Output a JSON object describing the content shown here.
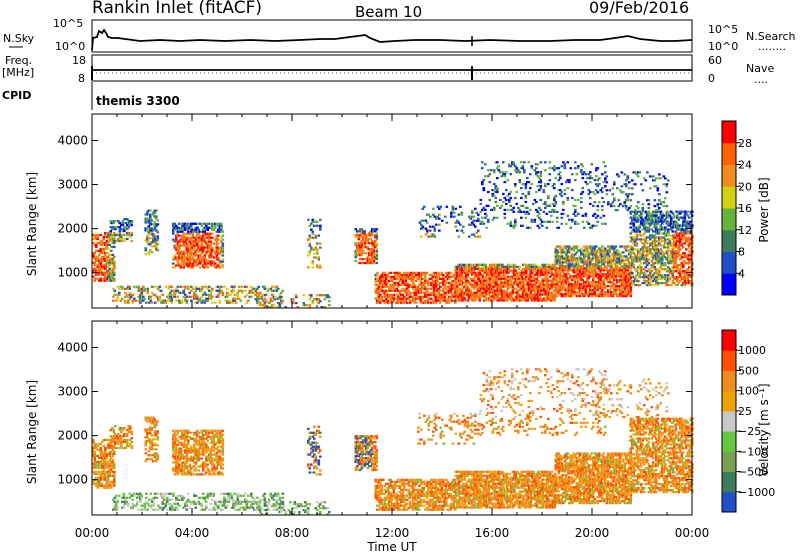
{
  "header": {
    "station": "Rankin Inlet (fitACF)",
    "beam": "Beam 10",
    "date": "09/Feb/2016"
  },
  "sky_panel": {
    "left_label": "N.Sky",
    "right_label": "N.Search",
    "right_legend": "........",
    "tick_top": "10^5",
    "tick_bottom": "10^0"
  },
  "freq_panel": {
    "left_label_1": "Freq.",
    "left_label_2": "[MHz]",
    "left_tick_top": "18",
    "left_tick_bottom": "8",
    "right_label": "Nave",
    "right_legend": "....",
    "right_tick_top": "60",
    "right_tick_bottom": "0"
  },
  "cpid_panel": {
    "label": "CPID",
    "value": "themis 3300"
  },
  "chart_data": [
    {
      "type": "heatmap",
      "title": "Power [dB]",
      "ylabel": "Slant Range [km]",
      "xlabel": "",
      "x_range_hours": [
        0,
        24
      ],
      "ylim": [
        200,
        4600
      ],
      "yticks": [
        "1000",
        "2000",
        "3000",
        "4000"
      ],
      "colorbar": {
        "label": "Power [dB]",
        "ticks": [
          "4",
          "8",
          "12",
          "16",
          "20",
          "24",
          "28"
        ],
        "colors": [
          "#0000ff",
          "#2050c8",
          "#3c7c5a",
          "#64b43c",
          "#d2d214",
          "#f08c1e",
          "#ff6400",
          "#ff0000"
        ]
      }
    },
    {
      "type": "heatmap",
      "title": "Velocity [m s^-1]",
      "ylabel": "Slant Range [km]",
      "xlabel": "Time UT",
      "x_range_hours": [
        0,
        24
      ],
      "ylim": [
        200,
        4600
      ],
      "yticks": [
        "1000",
        "2000",
        "3000",
        "4000"
      ],
      "colorbar": {
        "label": "Velocity [m s⁻¹]",
        "ticks": [
          "1000",
          "500",
          "100",
          "25",
          "−25",
          "−100",
          "−500",
          "−1000"
        ],
        "colors": [
          "#2050c8",
          "#3c7c5a",
          "#78a050",
          "#64c83c",
          "#c8c8c8",
          "#f0a000",
          "#f08c1e",
          "#ff5000",
          "#ff0000"
        ]
      }
    }
  ],
  "xaxis": {
    "ticks": [
      "00:00",
      "04:00",
      "08:00",
      "12:00",
      "16:00",
      "20:00",
      "00:00"
    ],
    "label": "Time UT"
  }
}
